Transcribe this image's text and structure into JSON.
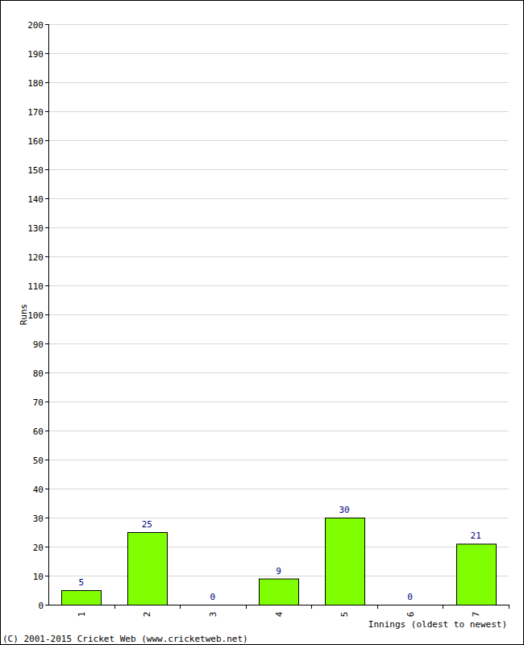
{
  "chart_data": {
    "type": "bar",
    "y_label": "Runs",
    "x_label": "Innings (oldest to newest)",
    "annotations": [
      "(C) 2001-2015 Cricket Web (www.cricketweb.net)"
    ],
    "categories": [
      "1",
      "2",
      "3",
      "4",
      "5",
      "6",
      "7"
    ],
    "values": [
      5,
      25,
      0,
      9,
      30,
      0,
      21
    ],
    "color": "#7fff00",
    "ylim": [
      0,
      200
    ],
    "yticks": [
      0,
      10,
      20,
      30,
      40,
      50,
      60,
      70,
      80,
      90,
      100,
      110,
      120,
      130,
      140,
      150,
      160,
      170,
      180,
      190,
      200
    ],
    "grid": true,
    "data_labels": true
  }
}
